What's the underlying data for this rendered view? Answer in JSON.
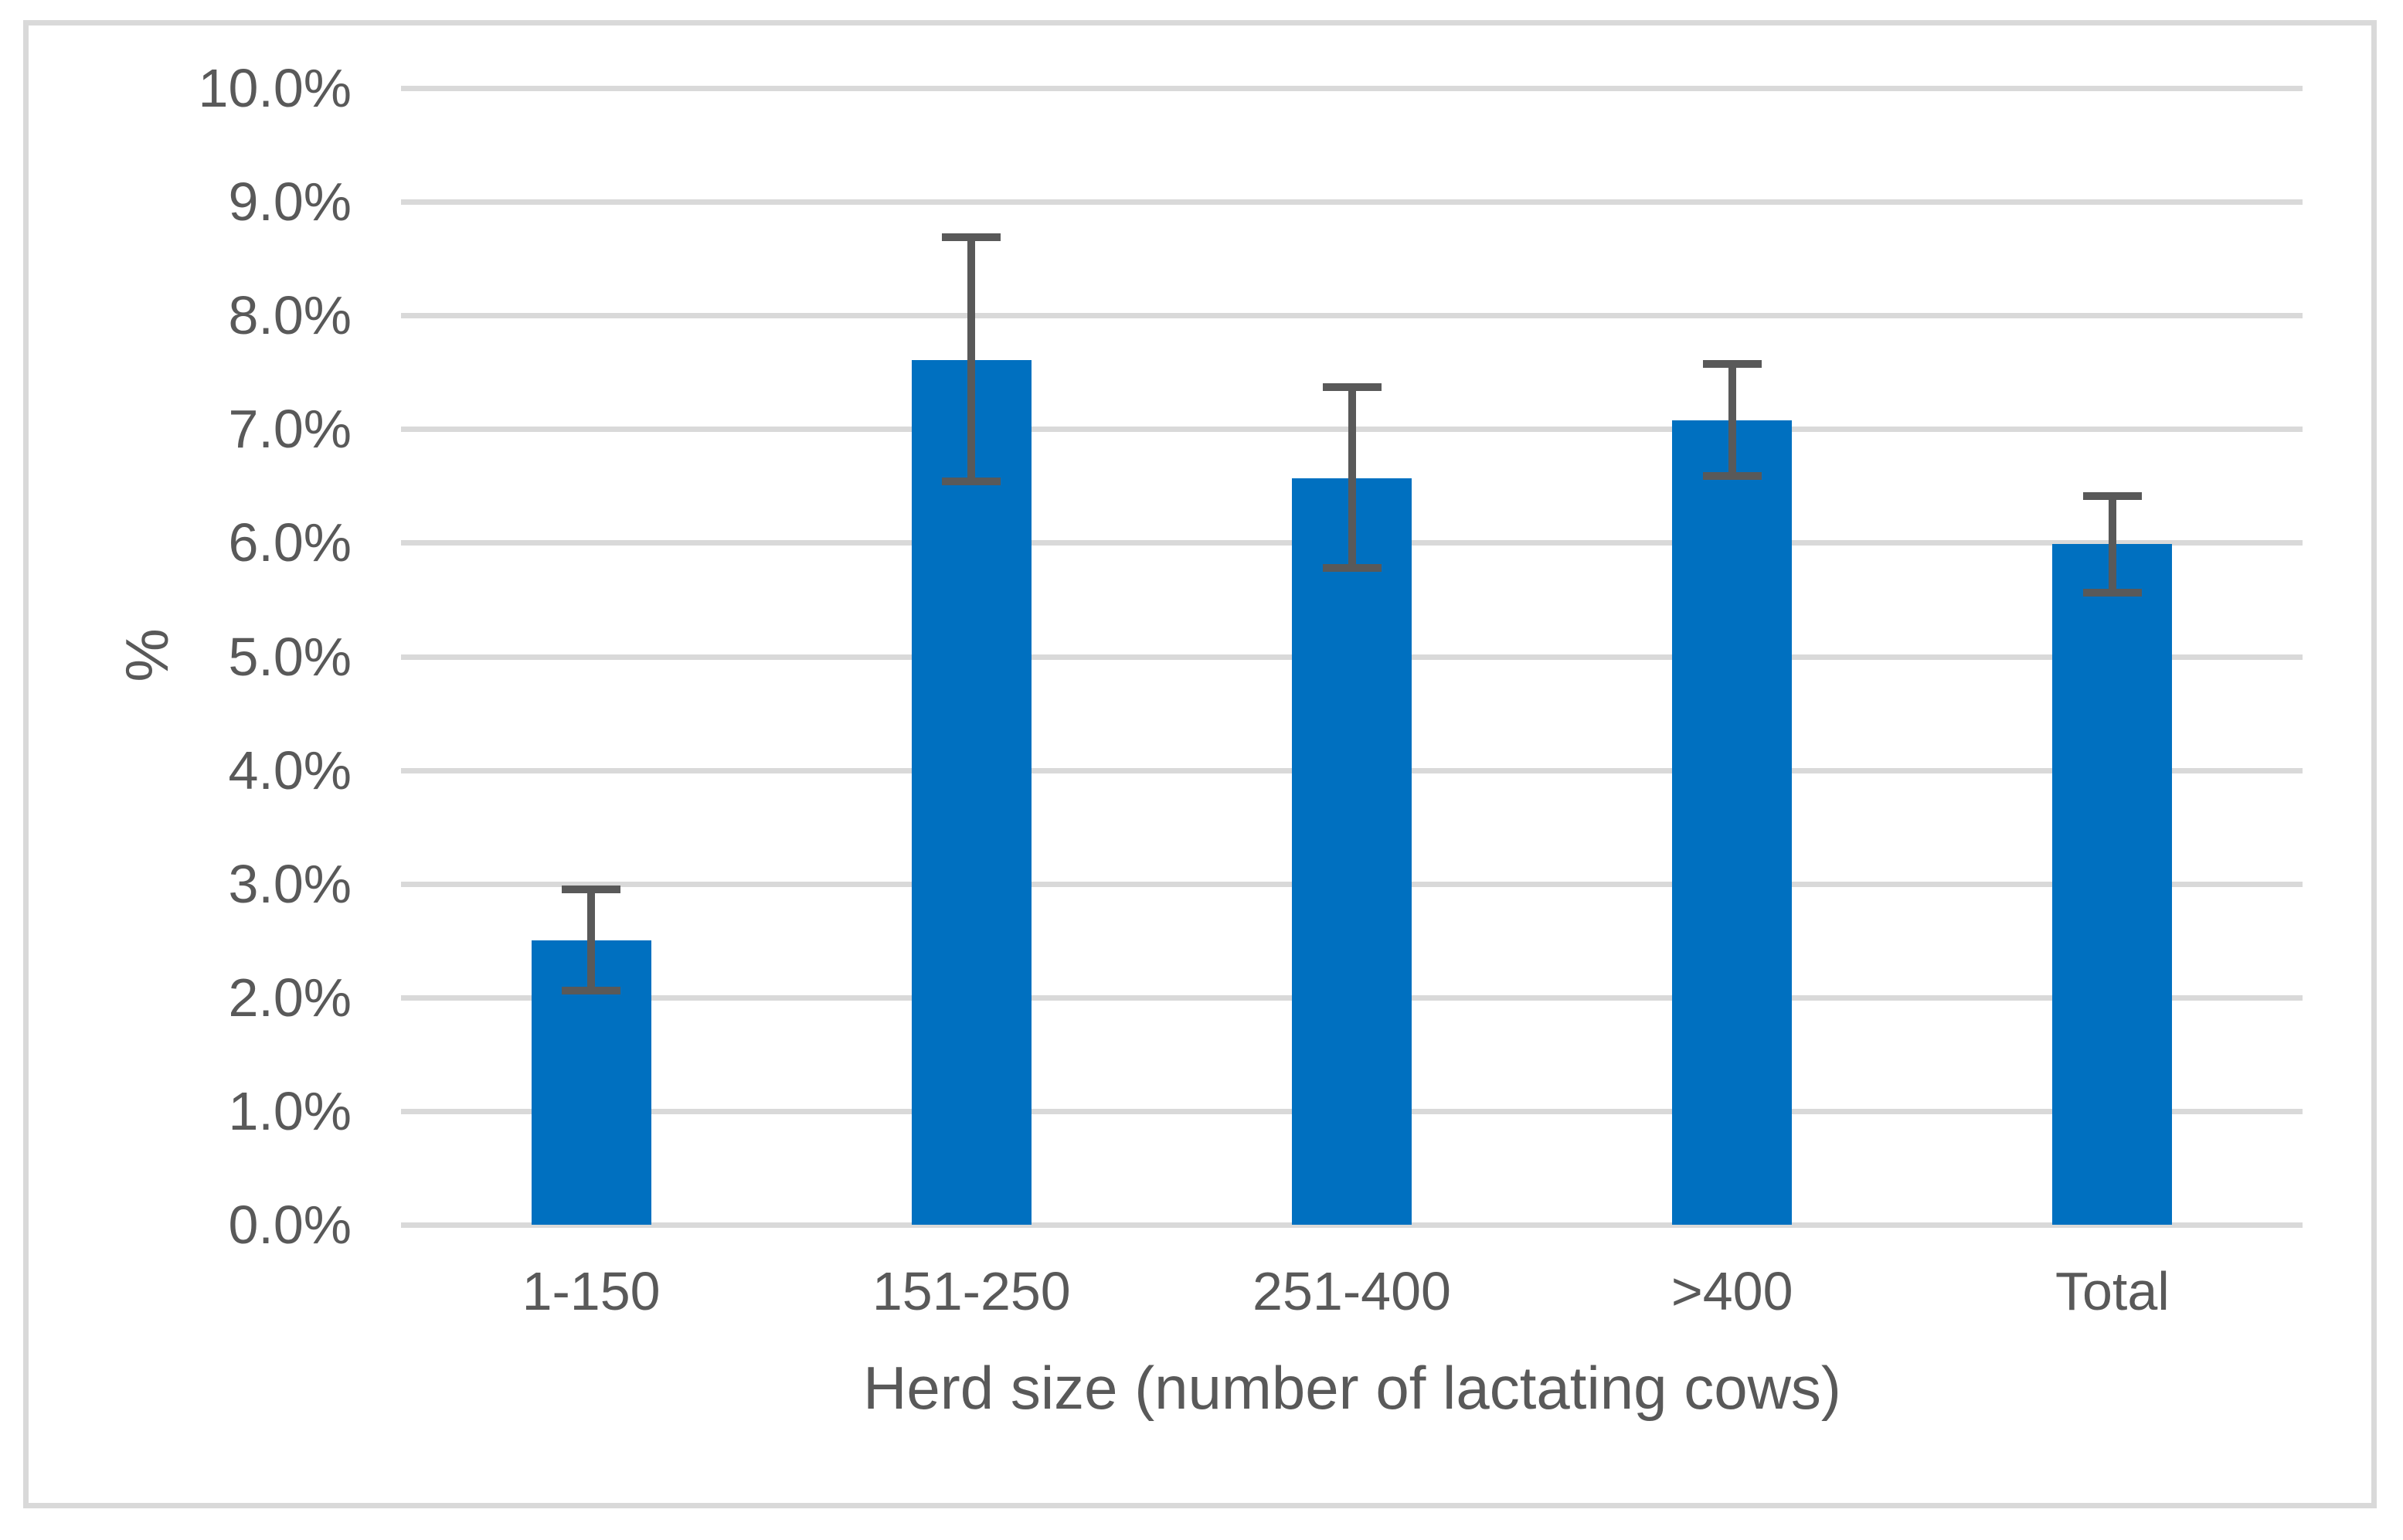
{
  "figure": {
    "background_color": "#FFFFFF",
    "frame_border_color": "#D9D9D9"
  },
  "chart_data": {
    "type": "bar",
    "title": "",
    "xlabel": "Herd size (number of lactating cows)",
    "ylabel": "%",
    "categories": [
      "1-150",
      "151-250",
      "251-400",
      ">400",
      "Total"
    ],
    "values": [
      2.5,
      7.61,
      6.57,
      7.08,
      5.99
    ],
    "error_low": [
      2.06,
      6.54,
      5.78,
      6.59,
      5.56
    ],
    "error_high": [
      2.95,
      8.69,
      7.37,
      7.57,
      6.41
    ],
    "ylim": [
      0,
      10
    ],
    "ytick_step": 1,
    "ytick_labels": [
      "0.0%",
      "1.0%",
      "2.0%",
      "3.0%",
      "4.0%",
      "5.0%",
      "6.0%",
      "7.0%",
      "8.0%",
      "9.0%",
      "10.0%"
    ],
    "grid": true,
    "legend": false,
    "bar_color": "#0070C0",
    "error_bar_color": "#595959",
    "gridline_color": "#D9D9D9",
    "text_color": "#595959"
  }
}
